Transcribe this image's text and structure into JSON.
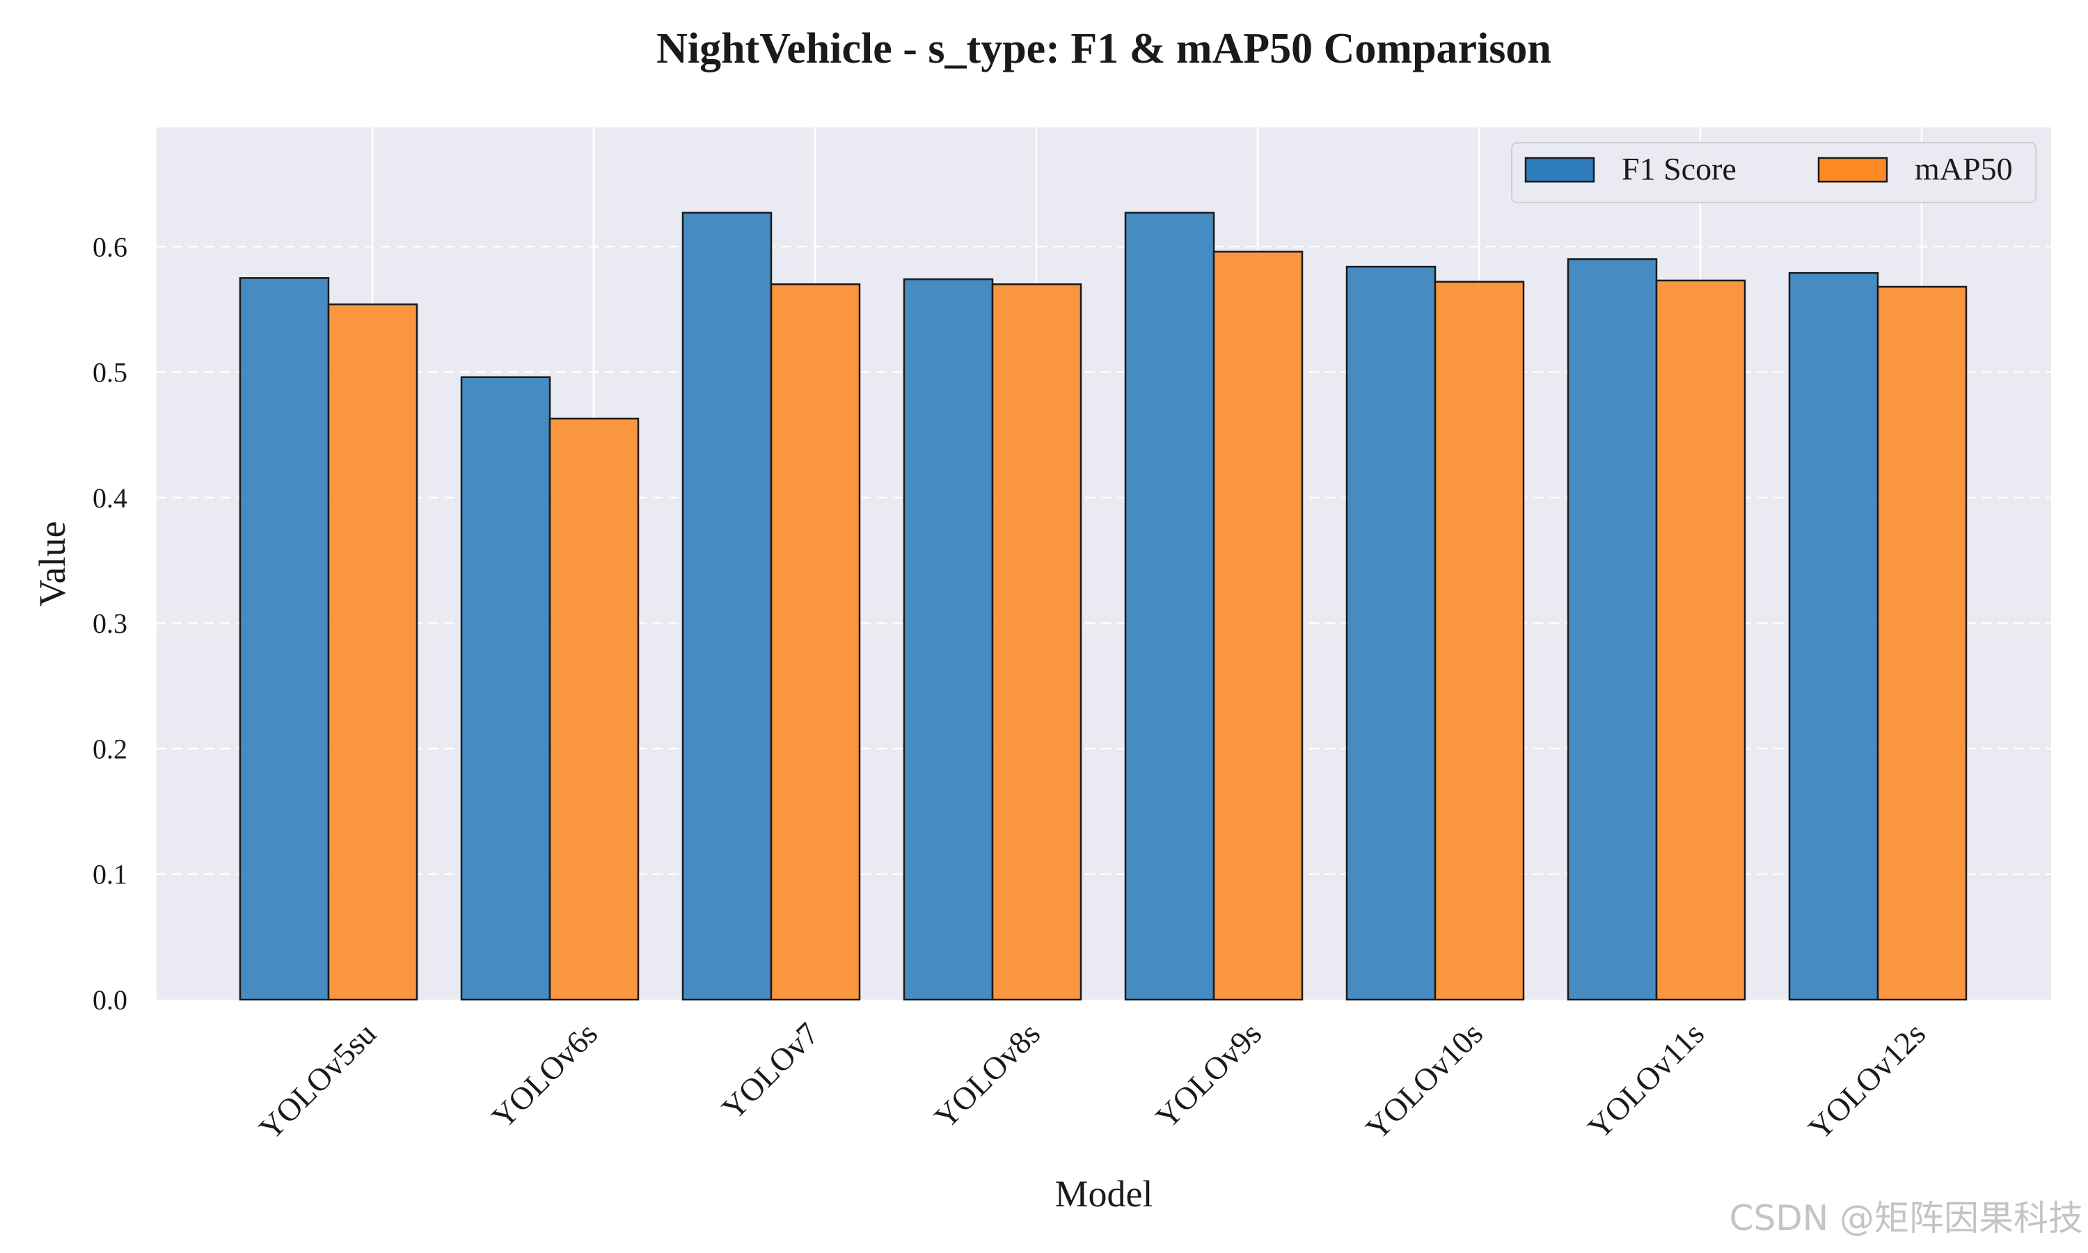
{
  "chart_data": {
    "type": "bar",
    "title": "NightVehicle - s_type: F1 & mAP50 Comparison",
    "xlabel": "Model",
    "ylabel": "Value",
    "categories": [
      "YOLOv5su",
      "YOLOv6s",
      "YOLOv7",
      "YOLOv8s",
      "YOLOv9s",
      "YOLOv10s",
      "YOLOv11s",
      "YOLOv12s"
    ],
    "series": [
      {
        "name": "F1 Score",
        "color": "#2f7dbb",
        "values": [
          0.575,
          0.496,
          0.627,
          0.574,
          0.627,
          0.584,
          0.59,
          0.579
        ]
      },
      {
        "name": "mAP50",
        "color": "#fb8a25",
        "values": [
          0.554,
          0.463,
          0.57,
          0.57,
          0.596,
          0.572,
          0.573,
          0.568
        ]
      }
    ],
    "ylim": [
      0,
      0.695
    ],
    "yticks": [
      "0.0",
      "0.1",
      "0.2",
      "0.3",
      "0.4",
      "0.5",
      "0.6"
    ],
    "grid": true,
    "legend_position": "top-right",
    "background_color": "#eaeaf2"
  },
  "watermark": "CSDN @矩阵因果科技"
}
